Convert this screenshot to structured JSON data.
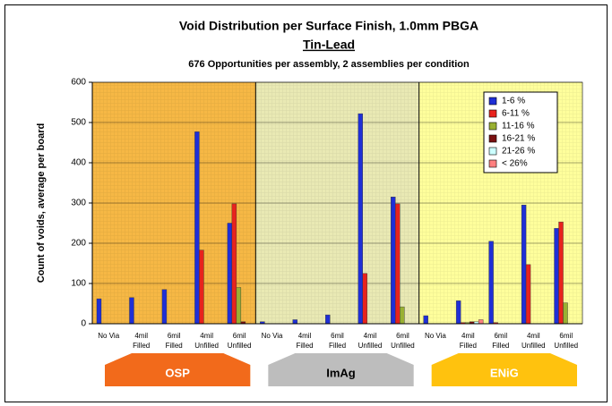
{
  "chart_data": {
    "type": "bar",
    "title": "Void Distribution per Surface Finish, 1.0mm PBGA",
    "subtitle": "Tin-Lead",
    "caption": "676 Opportunities per assembly, 2 assemblies per condition",
    "y_label": "Count of voids, average per board",
    "ylim": [
      0,
      600
    ],
    "yticks": [
      0,
      100,
      200,
      300,
      400,
      500,
      600
    ],
    "grid": true,
    "legend": "upper right",
    "groups": [
      {
        "name": "OSP",
        "color": "#f26a1b",
        "background": "#f6b845",
        "label_color": "#ffffff",
        "categories": [
          [
            "No Via"
          ],
          [
            "4mil",
            "Filled"
          ],
          [
            "6mil",
            "Filled"
          ],
          [
            "4mil",
            "Unfilled"
          ],
          [
            "6mil",
            "Unfilled"
          ]
        ]
      },
      {
        "name": "ImAg",
        "color": "#bdbdbd",
        "background": "#e9e9b4",
        "label_color": "#000000",
        "categories": [
          [
            "No Via"
          ],
          [
            "4mil",
            "Filled"
          ],
          [
            "6mil",
            "Filled"
          ],
          [
            "4mil",
            "Unfilled"
          ],
          [
            "6mil",
            "Unfilled"
          ]
        ]
      },
      {
        "name": "ENiG",
        "color": "#ffc20e",
        "background": "#ffff9c",
        "label_color": "#ffffff",
        "categories": [
          [
            "No Via"
          ],
          [
            "4mil",
            "Filled"
          ],
          [
            "6mil",
            "Filled"
          ],
          [
            "4mil",
            "Unfilled"
          ],
          [
            "6mil",
            "Unfilled"
          ]
        ]
      }
    ],
    "series": [
      {
        "name": "1-6 %",
        "color": "#1f2fd6",
        "values": [
          62,
          65,
          85,
          477,
          250,
          5,
          10,
          22,
          522,
          315,
          20,
          57,
          205,
          295,
          237
        ]
      },
      {
        "name": "6-11 %",
        "color": "#e8231d",
        "values": [
          0,
          0,
          0,
          183,
          298,
          0,
          0,
          0,
          125,
          298,
          0,
          3,
          3,
          147,
          253
        ]
      },
      {
        "name": "11-16 %",
        "color": "#99b032",
        "values": [
          0,
          0,
          0,
          0,
          90,
          0,
          0,
          0,
          0,
          42,
          0,
          3,
          0,
          0,
          52
        ]
      },
      {
        "name": "16-21 %",
        "color": "#7a1010",
        "values": [
          0,
          0,
          0,
          0,
          5,
          0,
          0,
          0,
          0,
          0,
          0,
          5,
          0,
          0,
          0
        ]
      },
      {
        "name": "21-26 %",
        "color": "#ccffff",
        "values": [
          0,
          0,
          0,
          0,
          0,
          0,
          0,
          0,
          0,
          0,
          0,
          5,
          0,
          0,
          0
        ]
      },
      {
        "name": "< 26%",
        "color": "#ff8080",
        "values": [
          0,
          0,
          0,
          0,
          0,
          0,
          0,
          0,
          0,
          0,
          0,
          10,
          0,
          0,
          0
        ]
      }
    ]
  }
}
